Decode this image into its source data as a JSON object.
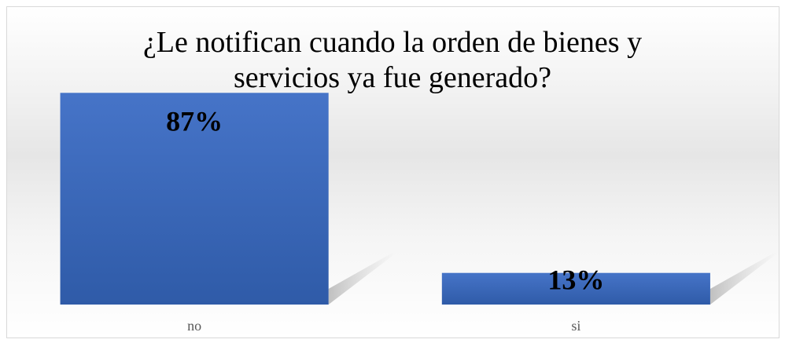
{
  "chart_data": {
    "type": "bar",
    "title": "¿Le notifican cuando la orden de bienes y servicios ya fue generado?",
    "categories": [
      "no",
      "si"
    ],
    "values": [
      87,
      13
    ],
    "value_labels": [
      "87%",
      "13%"
    ],
    "color": "#4472c4",
    "ylim": [
      0,
      100
    ]
  }
}
